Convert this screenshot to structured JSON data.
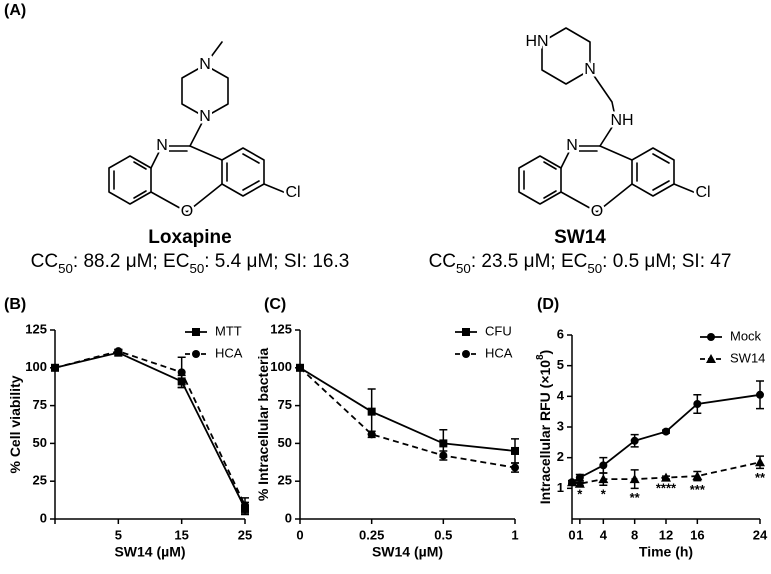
{
  "panel_a": {
    "label": "(A)",
    "compounds": [
      {
        "name": "Loxapine",
        "properties": [
          "CC",
          "50",
          ": 88.2 μM; EC",
          "50",
          ": 5.4 μM; SI: 16.3"
        ],
        "atoms": [
          "N",
          "O",
          "Cl",
          "N",
          "N"
        ]
      },
      {
        "name": "SW14",
        "properties": [
          "CC",
          "50",
          ": 23.5 μM; EC",
          "50",
          ": 0.5 μM; SI: 47"
        ],
        "atoms": [
          "N",
          "O",
          "Cl",
          "NH",
          "N",
          "HN"
        ]
      }
    ]
  },
  "chart_data": [
    {
      "type": "line",
      "panel": "(B)",
      "xlabel": "SW14 (µM)",
      "ylabel": [
        "% Cell viability"
      ],
      "categories": [
        null,
        "5",
        "15",
        "25"
      ],
      "ylim": [
        0,
        125
      ],
      "yticks": [
        0,
        25,
        50,
        75,
        100,
        125
      ],
      "legend": "upper right",
      "series": [
        {
          "name": "MTT",
          "color": "#000000",
          "marker": "square",
          "dash": false,
          "values": [
            100,
            110,
            91,
            7
          ],
          "errors": [
            0,
            2,
            4,
            4
          ]
        },
        {
          "name": "HCA",
          "color": "#000000",
          "marker": "circle",
          "dash": true,
          "values": [
            100,
            111,
            97,
            9
          ],
          "errors": [
            0,
            1,
            10,
            5
          ]
        }
      ]
    },
    {
      "type": "line",
      "panel": "(C)",
      "xlabel": "SW14 (µM)",
      "ylabel": [
        "% Intracellular bacteria"
      ],
      "categories": [
        "0",
        "0.25",
        "0.5",
        "1"
      ],
      "ylim": [
        0,
        125
      ],
      "yticks": [
        0,
        25,
        50,
        75,
        100,
        125
      ],
      "legend": "upper right",
      "series": [
        {
          "name": "CFU",
          "color": "#000000",
          "marker": "square",
          "dash": false,
          "values": [
            100,
            71,
            50,
            45
          ],
          "errors": [
            0,
            15,
            9,
            8
          ]
        },
        {
          "name": "HCA",
          "color": "#000000",
          "marker": "circle",
          "dash": true,
          "values": [
            100,
            56,
            42,
            34
          ],
          "errors": [
            0,
            2,
            3,
            3
          ]
        }
      ]
    },
    {
      "type": "line",
      "panel": "(D)",
      "xlabel": "Time (h)",
      "ylabel": [
        "Intracellular RFU (×10",
        "8",
        ")"
      ],
      "x": [
        0,
        1,
        4,
        8,
        12,
        16,
        24
      ],
      "xlim": [
        0,
        24
      ],
      "xticks": [
        0,
        1,
        4,
        8,
        12,
        16,
        24
      ],
      "ylim": [
        0,
        6
      ],
      "yticks": [
        1,
        2,
        3,
        4,
        5,
        6
      ],
      "legend": "upper right",
      "series": [
        {
          "name": "Mock",
          "color": "#000000",
          "marker": "circle",
          "dash": false,
          "values": [
            1.2,
            1.35,
            1.75,
            2.55,
            2.85,
            3.75,
            4.05
          ],
          "errors": [
            0.05,
            0.1,
            0.25,
            0.2,
            0.05,
            0.3,
            0.45
          ]
        },
        {
          "name": "SW14",
          "color": "#000000",
          "marker": "triangle",
          "dash": true,
          "values": [
            1.2,
            1.15,
            1.3,
            1.3,
            1.35,
            1.4,
            1.85
          ],
          "errors": [
            0.05,
            0.05,
            0.2,
            0.3,
            0.05,
            0.15,
            0.2
          ]
        }
      ],
      "annotations": [
        {
          "x": 1,
          "text": "*"
        },
        {
          "x": 4,
          "text": "*"
        },
        {
          "x": 8,
          "text": "**"
        },
        {
          "x": 12,
          "text": "****"
        },
        {
          "x": 16,
          "text": "***"
        },
        {
          "x": 24,
          "text": "**"
        }
      ]
    }
  ]
}
